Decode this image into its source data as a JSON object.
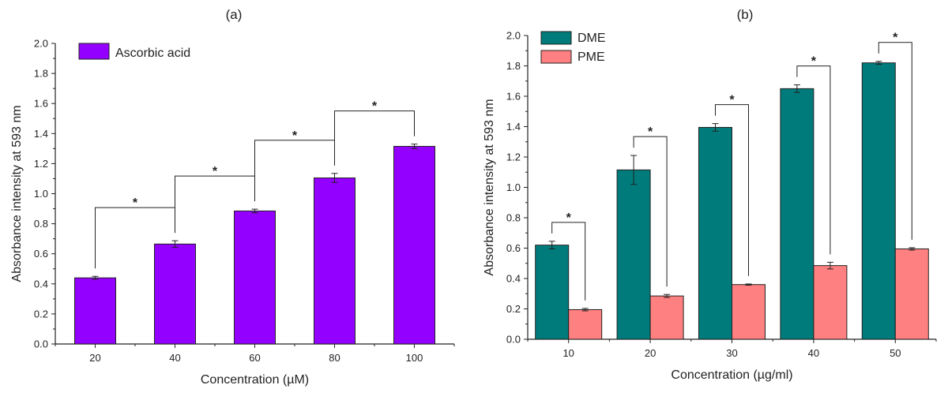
{
  "chart_data": [
    {
      "type": "bar",
      "panel_label": "(a)",
      "categories": [
        "20",
        "40",
        "60",
        "80",
        "100"
      ],
      "series": [
        {
          "name": "Ascorbic acid",
          "values": [
            0.44,
            0.665,
            0.885,
            1.105,
            1.315
          ],
          "errors": [
            0.01,
            0.022,
            0.012,
            0.03,
            0.015
          ],
          "color": "#9400FF"
        }
      ],
      "xlabel": "Concentration (µM)",
      "ylabel": "Absorbance intensity at 593 nm",
      "ylim": [
        0,
        2.0
      ],
      "yticks": [
        "0.0",
        "0.2",
        "0.4",
        "0.6",
        "0.8",
        "1.0",
        "1.2",
        "1.4",
        "1.6",
        "1.8",
        "2.0"
      ],
      "legend_position": "top-left",
      "annotations": [
        {
          "text": "*",
          "between": [
            0,
            1
          ]
        },
        {
          "text": "*",
          "between": [
            1,
            2
          ]
        },
        {
          "text": "*",
          "between": [
            2,
            3
          ]
        },
        {
          "text": "*",
          "between": [
            3,
            4
          ]
        }
      ]
    },
    {
      "type": "bar",
      "panel_label": "(b)",
      "categories": [
        "10",
        "20",
        "30",
        "40",
        "50"
      ],
      "series": [
        {
          "name": "DME",
          "values": [
            0.62,
            1.115,
            1.395,
            1.65,
            1.82
          ],
          "errors": [
            0.025,
            0.095,
            0.025,
            0.025,
            0.01
          ],
          "color": "#007B7B"
        },
        {
          "name": "PME",
          "values": [
            0.195,
            0.285,
            0.36,
            0.485,
            0.595
          ],
          "errors": [
            0.008,
            0.01,
            0.004,
            0.022,
            0.008
          ],
          "color": "#FF8080"
        }
      ],
      "xlabel": "Concentration (µg/ml)",
      "ylabel": "Absorbance intensity at 593 nm",
      "ylim": [
        0,
        2.0
      ],
      "yticks": [
        "0.0",
        "0.2",
        "0.4",
        "0.6",
        "0.8",
        "1.0",
        "1.2",
        "1.4",
        "1.6",
        "1.8",
        "2.0"
      ],
      "legend_position": "top-left",
      "annotations": [
        {
          "text": "*",
          "category": 0
        },
        {
          "text": "*",
          "category": 1
        },
        {
          "text": "*",
          "category": 2
        },
        {
          "text": "*",
          "category": 3
        },
        {
          "text": "*",
          "category": 4
        }
      ]
    }
  ]
}
